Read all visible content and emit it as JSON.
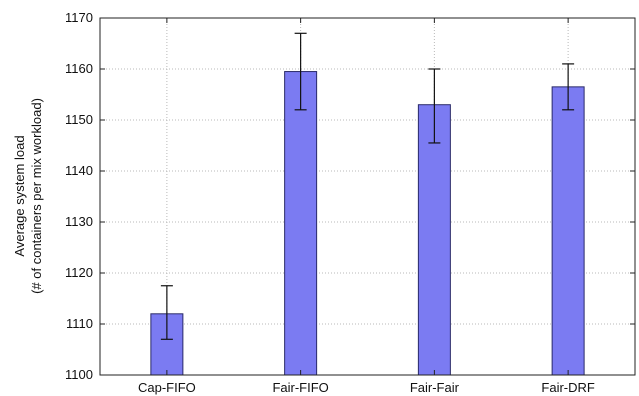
{
  "chart_data": {
    "type": "bar",
    "title": "",
    "xlabel": "",
    "ylabel_line1": "Average system load",
    "ylabel_line2": "(# of containers per mix workload)",
    "categories": [
      "Cap-FIFO",
      "Fair-FIFO",
      "Fair-Fair",
      "Fair-DRF"
    ],
    "values": [
      1112,
      1159.5,
      1153,
      1156.5
    ],
    "error_low": [
      1107,
      1152,
      1145.5,
      1152
    ],
    "error_high": [
      1117.5,
      1167,
      1160,
      1161
    ],
    "ylim": [
      1100,
      1170
    ],
    "yticks": [
      1100,
      1110,
      1120,
      1130,
      1140,
      1150,
      1160,
      1170
    ],
    "grid": true,
    "bar_color": "#7b7bf2",
    "legend": "none"
  }
}
